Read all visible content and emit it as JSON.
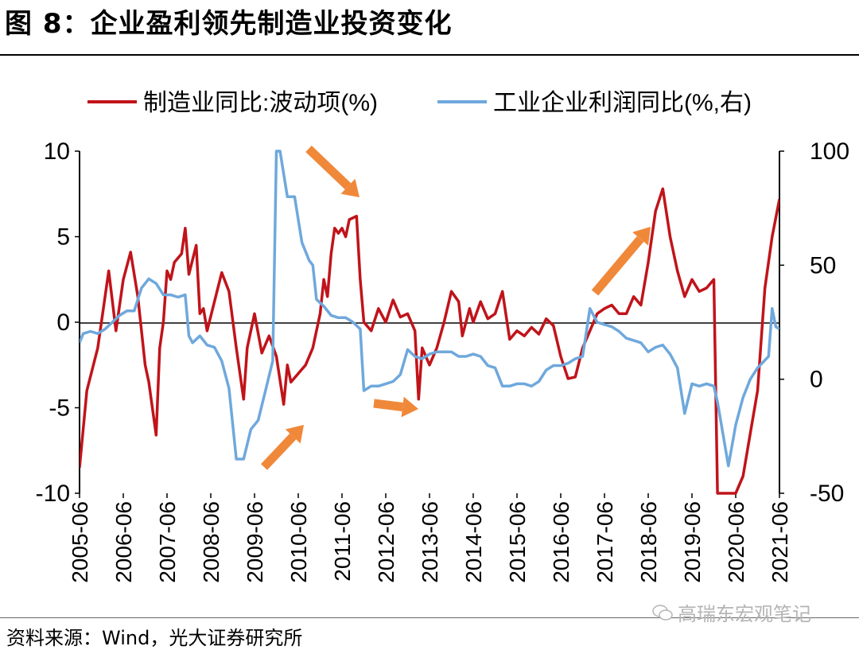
{
  "title": "图 8：企业盈利领先制造业投资变化",
  "source": "资料来源：Wind，光大证券研究所",
  "watermark": "高瑞东宏观笔记",
  "colors": {
    "series1": "#c0141a",
    "series2": "#6fa8dc",
    "arrow": "#f0883a"
  },
  "chart_data": {
    "type": "line",
    "legend_position": "top",
    "grid": false,
    "x_range": [
      "2005-06",
      "2021-06"
    ],
    "x_tick_labels": [
      "2005-06",
      "2006-06",
      "2007-06",
      "2008-06",
      "2009-06",
      "2010-06",
      "2011-06",
      "2012-06",
      "2013-06",
      "2014-06",
      "2015-06",
      "2016-06",
      "2017-06",
      "2018-06",
      "2019-06",
      "2020-06",
      "2021-06"
    ],
    "left_axis": {
      "ylim": [
        -10,
        10
      ],
      "ticks": [
        "10",
        "5",
        "0",
        "-5",
        "-10"
      ]
    },
    "right_axis": {
      "ylim": [
        -50,
        100
      ],
      "ticks": [
        "100",
        "50",
        "0",
        "-50"
      ]
    },
    "series": [
      {
        "name": "制造业同比:波动项(%)",
        "axis": "left",
        "color": "#c0141a",
        "points": [
          [
            "2005-06",
            -8.5
          ],
          [
            "2005-08",
            -4
          ],
          [
            "2005-11",
            -1.5
          ],
          [
            "2006-01",
            1.5
          ],
          [
            "2006-02",
            3.0
          ],
          [
            "2006-04",
            -0.5
          ],
          [
            "2006-06",
            2.5
          ],
          [
            "2006-08",
            4.1
          ],
          [
            "2006-10",
            1.5
          ],
          [
            "2006-12",
            -2.5
          ],
          [
            "2007-01",
            -3.5
          ],
          [
            "2007-03",
            -6.6
          ],
          [
            "2007-04",
            -1.5
          ],
          [
            "2007-05",
            0
          ],
          [
            "2007-06",
            3.0
          ],
          [
            "2007-07",
            2.5
          ],
          [
            "2007-08",
            3.5
          ],
          [
            "2007-10",
            4.0
          ],
          [
            "2007-11",
            5.5
          ],
          [
            "2007-12",
            2.8
          ],
          [
            "2008-02",
            4.5
          ],
          [
            "2008-03",
            0.5
          ],
          [
            "2008-04",
            0.8
          ],
          [
            "2008-05",
            -0.5
          ],
          [
            "2008-07",
            1.2
          ],
          [
            "2008-09",
            2.9
          ],
          [
            "2008-11",
            1.8
          ],
          [
            "2009-01",
            -1.5
          ],
          [
            "2009-03",
            -4.5
          ],
          [
            "2009-04",
            -1.5
          ],
          [
            "2009-06",
            0.5
          ],
          [
            "2009-08",
            -1.8
          ],
          [
            "2009-10",
            -0.8
          ],
          [
            "2009-12",
            -2.0
          ],
          [
            "2010-02",
            -4.8
          ],
          [
            "2010-03",
            -2.5
          ],
          [
            "2010-04",
            -3.5
          ],
          [
            "2010-06",
            -3.0
          ],
          [
            "2010-08",
            -2.5
          ],
          [
            "2010-10",
            -1.5
          ],
          [
            "2010-12",
            0.5
          ],
          [
            "2011-01",
            2.5
          ],
          [
            "2011-02",
            1.5
          ],
          [
            "2011-03",
            4.0
          ],
          [
            "2011-04",
            5.5
          ],
          [
            "2011-05",
            5.2
          ],
          [
            "2011-06",
            5.5
          ],
          [
            "2011-07",
            5.0
          ],
          [
            "2011-08",
            6.0
          ],
          [
            "2011-10",
            6.2
          ],
          [
            "2011-11",
            2.5
          ],
          [
            "2011-12",
            0
          ],
          [
            "2012-02",
            -0.5
          ],
          [
            "2012-04",
            0.8
          ],
          [
            "2012-06",
            0
          ],
          [
            "2012-08",
            1.3
          ],
          [
            "2012-10",
            0.3
          ],
          [
            "2012-12",
            0.5
          ],
          [
            "2013-02",
            -0.5
          ],
          [
            "2013-03",
            -4.5
          ],
          [
            "2013-04",
            -1.5
          ],
          [
            "2013-06",
            -2.5
          ],
          [
            "2013-08",
            -1.5
          ],
          [
            "2013-10",
            0
          ],
          [
            "2013-12",
            1.8
          ],
          [
            "2014-02",
            1.2
          ],
          [
            "2014-03",
            -0.8
          ],
          [
            "2014-05",
            0.8
          ],
          [
            "2014-06",
            0
          ],
          [
            "2014-08",
            1.2
          ],
          [
            "2014-10",
            0.2
          ],
          [
            "2014-12",
            0.5
          ],
          [
            "2015-02",
            1.8
          ],
          [
            "2015-04",
            -1.0
          ],
          [
            "2015-06",
            -0.5
          ],
          [
            "2015-08",
            -0.8
          ],
          [
            "2015-10",
            -0.3
          ],
          [
            "2015-12",
            -0.7
          ],
          [
            "2016-02",
            0.2
          ],
          [
            "2016-04",
            -0.2
          ],
          [
            "2016-06",
            -2.0
          ],
          [
            "2016-08",
            -3.3
          ],
          [
            "2016-10",
            -3.2
          ],
          [
            "2016-12",
            -1.5
          ],
          [
            "2017-02",
            -0.5
          ],
          [
            "2017-04",
            0.5
          ],
          [
            "2017-06",
            0.8
          ],
          [
            "2017-08",
            1.0
          ],
          [
            "2017-10",
            0.5
          ],
          [
            "2017-12",
            0.5
          ],
          [
            "2018-02",
            1.5
          ],
          [
            "2018-04",
            1.0
          ],
          [
            "2018-06",
            3.5
          ],
          [
            "2018-08",
            6.5
          ],
          [
            "2018-10",
            7.8
          ],
          [
            "2018-12",
            5.0
          ],
          [
            "2019-02",
            3.0
          ],
          [
            "2019-04",
            1.5
          ],
          [
            "2019-06",
            2.5
          ],
          [
            "2019-08",
            1.8
          ],
          [
            "2019-10",
            2.0
          ],
          [
            "2019-12",
            2.5
          ],
          [
            "2020-01",
            -10
          ],
          [
            "2020-06",
            -10
          ],
          [
            "2020-08",
            -9.0
          ],
          [
            "2020-10",
            -6.5
          ],
          [
            "2020-12",
            -4.0
          ],
          [
            "2021-02",
            2.0
          ],
          [
            "2021-04",
            5.0
          ],
          [
            "2021-06",
            7.2
          ]
        ]
      },
      {
        "name": "工业企业利润同比(%,右)",
        "axis": "right",
        "color": "#6fa8dc",
        "points": [
          [
            "2005-06",
            16
          ],
          [
            "2005-07",
            20
          ],
          [
            "2005-09",
            21
          ],
          [
            "2005-11",
            20
          ],
          [
            "2006-01",
            22
          ],
          [
            "2006-03",
            25
          ],
          [
            "2006-05",
            28
          ],
          [
            "2006-07",
            30
          ],
          [
            "2006-09",
            30
          ],
          [
            "2006-11",
            40
          ],
          [
            "2007-01",
            44
          ],
          [
            "2007-03",
            42
          ],
          [
            "2007-05",
            37
          ],
          [
            "2007-07",
            37
          ],
          [
            "2007-09",
            36
          ],
          [
            "2007-11",
            37
          ],
          [
            "2007-12",
            19
          ],
          [
            "2008-01",
            16
          ],
          [
            "2008-03",
            19
          ],
          [
            "2008-05",
            15
          ],
          [
            "2008-07",
            14
          ],
          [
            "2008-09",
            8
          ],
          [
            "2008-11",
            -4
          ],
          [
            "2009-01",
            -35
          ],
          [
            "2009-03",
            -35
          ],
          [
            "2009-05",
            -22
          ],
          [
            "2009-07",
            -18
          ],
          [
            "2009-09",
            -5
          ],
          [
            "2009-11",
            8
          ],
          [
            "2009-12",
            100
          ],
          [
            "2010-01",
            100
          ],
          [
            "2010-03",
            80
          ],
          [
            "2010-05",
            80
          ],
          [
            "2010-07",
            60
          ],
          [
            "2010-09",
            52
          ],
          [
            "2010-10",
            50
          ],
          [
            "2010-11",
            35
          ],
          [
            "2011-01",
            32
          ],
          [
            "2011-03",
            28
          ],
          [
            "2011-05",
            27
          ],
          [
            "2011-07",
            27
          ],
          [
            "2011-09",
            25
          ],
          [
            "2011-11",
            22
          ],
          [
            "2011-12",
            -5
          ],
          [
            "2012-02",
            -3
          ],
          [
            "2012-04",
            -3
          ],
          [
            "2012-06",
            -2
          ],
          [
            "2012-08",
            -1
          ],
          [
            "2012-10",
            2
          ],
          [
            "2012-12",
            13
          ],
          [
            "2013-02",
            10
          ],
          [
            "2013-04",
            9
          ],
          [
            "2013-06",
            11
          ],
          [
            "2013-08",
            12
          ],
          [
            "2013-10",
            12
          ],
          [
            "2013-12",
            12
          ],
          [
            "2014-02",
            10
          ],
          [
            "2014-04",
            10
          ],
          [
            "2014-06",
            11
          ],
          [
            "2014-08",
            10
          ],
          [
            "2014-10",
            6
          ],
          [
            "2014-12",
            5
          ],
          [
            "2015-02",
            -3
          ],
          [
            "2015-04",
            -3
          ],
          [
            "2015-06",
            -2
          ],
          [
            "2015-08",
            -2
          ],
          [
            "2015-10",
            -3
          ],
          [
            "2015-12",
            -1
          ],
          [
            "2016-02",
            4
          ],
          [
            "2016-04",
            6
          ],
          [
            "2016-06",
            6
          ],
          [
            "2016-08",
            7
          ],
          [
            "2016-10",
            9
          ],
          [
            "2016-12",
            10
          ],
          [
            "2017-02",
            31
          ],
          [
            "2017-04",
            25
          ],
          [
            "2017-06",
            24
          ],
          [
            "2017-08",
            23
          ],
          [
            "2017-10",
            21
          ],
          [
            "2017-12",
            18
          ],
          [
            "2018-02",
            17
          ],
          [
            "2018-04",
            16
          ],
          [
            "2018-06",
            12
          ],
          [
            "2018-08",
            14
          ],
          [
            "2018-10",
            15
          ],
          [
            "2018-12",
            11
          ],
          [
            "2019-02",
            5
          ],
          [
            "2019-04",
            -15
          ],
          [
            "2019-06",
            -2
          ],
          [
            "2019-08",
            -3
          ],
          [
            "2019-10",
            -2
          ],
          [
            "2019-12",
            -3
          ],
          [
            "2020-01",
            -10
          ],
          [
            "2020-04",
            -38
          ],
          [
            "2020-06",
            -20
          ],
          [
            "2020-08",
            -8
          ],
          [
            "2020-10",
            0
          ],
          [
            "2020-12",
            5
          ],
          [
            "2021-03",
            10
          ],
          [
            "2021-04",
            31
          ],
          [
            "2021-05",
            23
          ],
          [
            "2021-06",
            22
          ]
        ]
      }
    ],
    "annotations": [
      "arrow-1",
      "arrow-2",
      "arrow-3",
      "arrow-4",
      "arrow-5"
    ]
  }
}
